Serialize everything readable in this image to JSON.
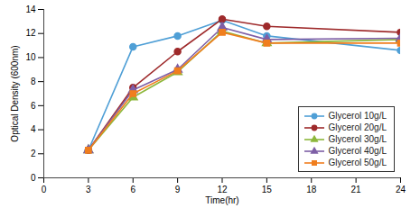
{
  "chart_data": {
    "type": "line",
    "x_label": "Time(hr)",
    "y_label": "Optical Density (600nm)",
    "x": [
      3,
      6,
      9,
      12,
      15,
      24
    ],
    "series": [
      {
        "name": "Glycerol 10g/L",
        "color": "#4f9fd6",
        "marker": "circle",
        "values": [
          2.3,
          10.9,
          11.8,
          13.1,
          11.8,
          10.6
        ]
      },
      {
        "name": "Glycerol 20g/L",
        "color": "#9e2a2b",
        "marker": "circle",
        "values": [
          2.3,
          7.5,
          10.5,
          13.2,
          12.6,
          12.1
        ]
      },
      {
        "name": "Glycerol 30g/L",
        "color": "#8db73b",
        "marker": "triangle",
        "values": [
          2.3,
          6.7,
          8.8,
          12.2,
          11.2,
          11.5
        ]
      },
      {
        "name": "Glycerol 40g/L",
        "color": "#7e5fa6",
        "marker": "triangle",
        "values": [
          2.3,
          7.3,
          9.0,
          12.5,
          11.5,
          11.6
        ]
      },
      {
        "name": "Glycerol 50g/L",
        "color": "#f07e1e",
        "marker": "square",
        "values": [
          2.3,
          7.0,
          8.9,
          12.1,
          11.2,
          11.2
        ]
      }
    ],
    "xlim": [
      0,
      24
    ],
    "xticks": [
      0,
      3,
      6,
      9,
      12,
      15,
      18,
      21,
      24
    ],
    "ylim": [
      0,
      14
    ],
    "yticks": [
      0,
      2,
      4,
      6,
      8,
      10,
      12,
      14
    ],
    "grid": false,
    "legend": "lower right"
  }
}
